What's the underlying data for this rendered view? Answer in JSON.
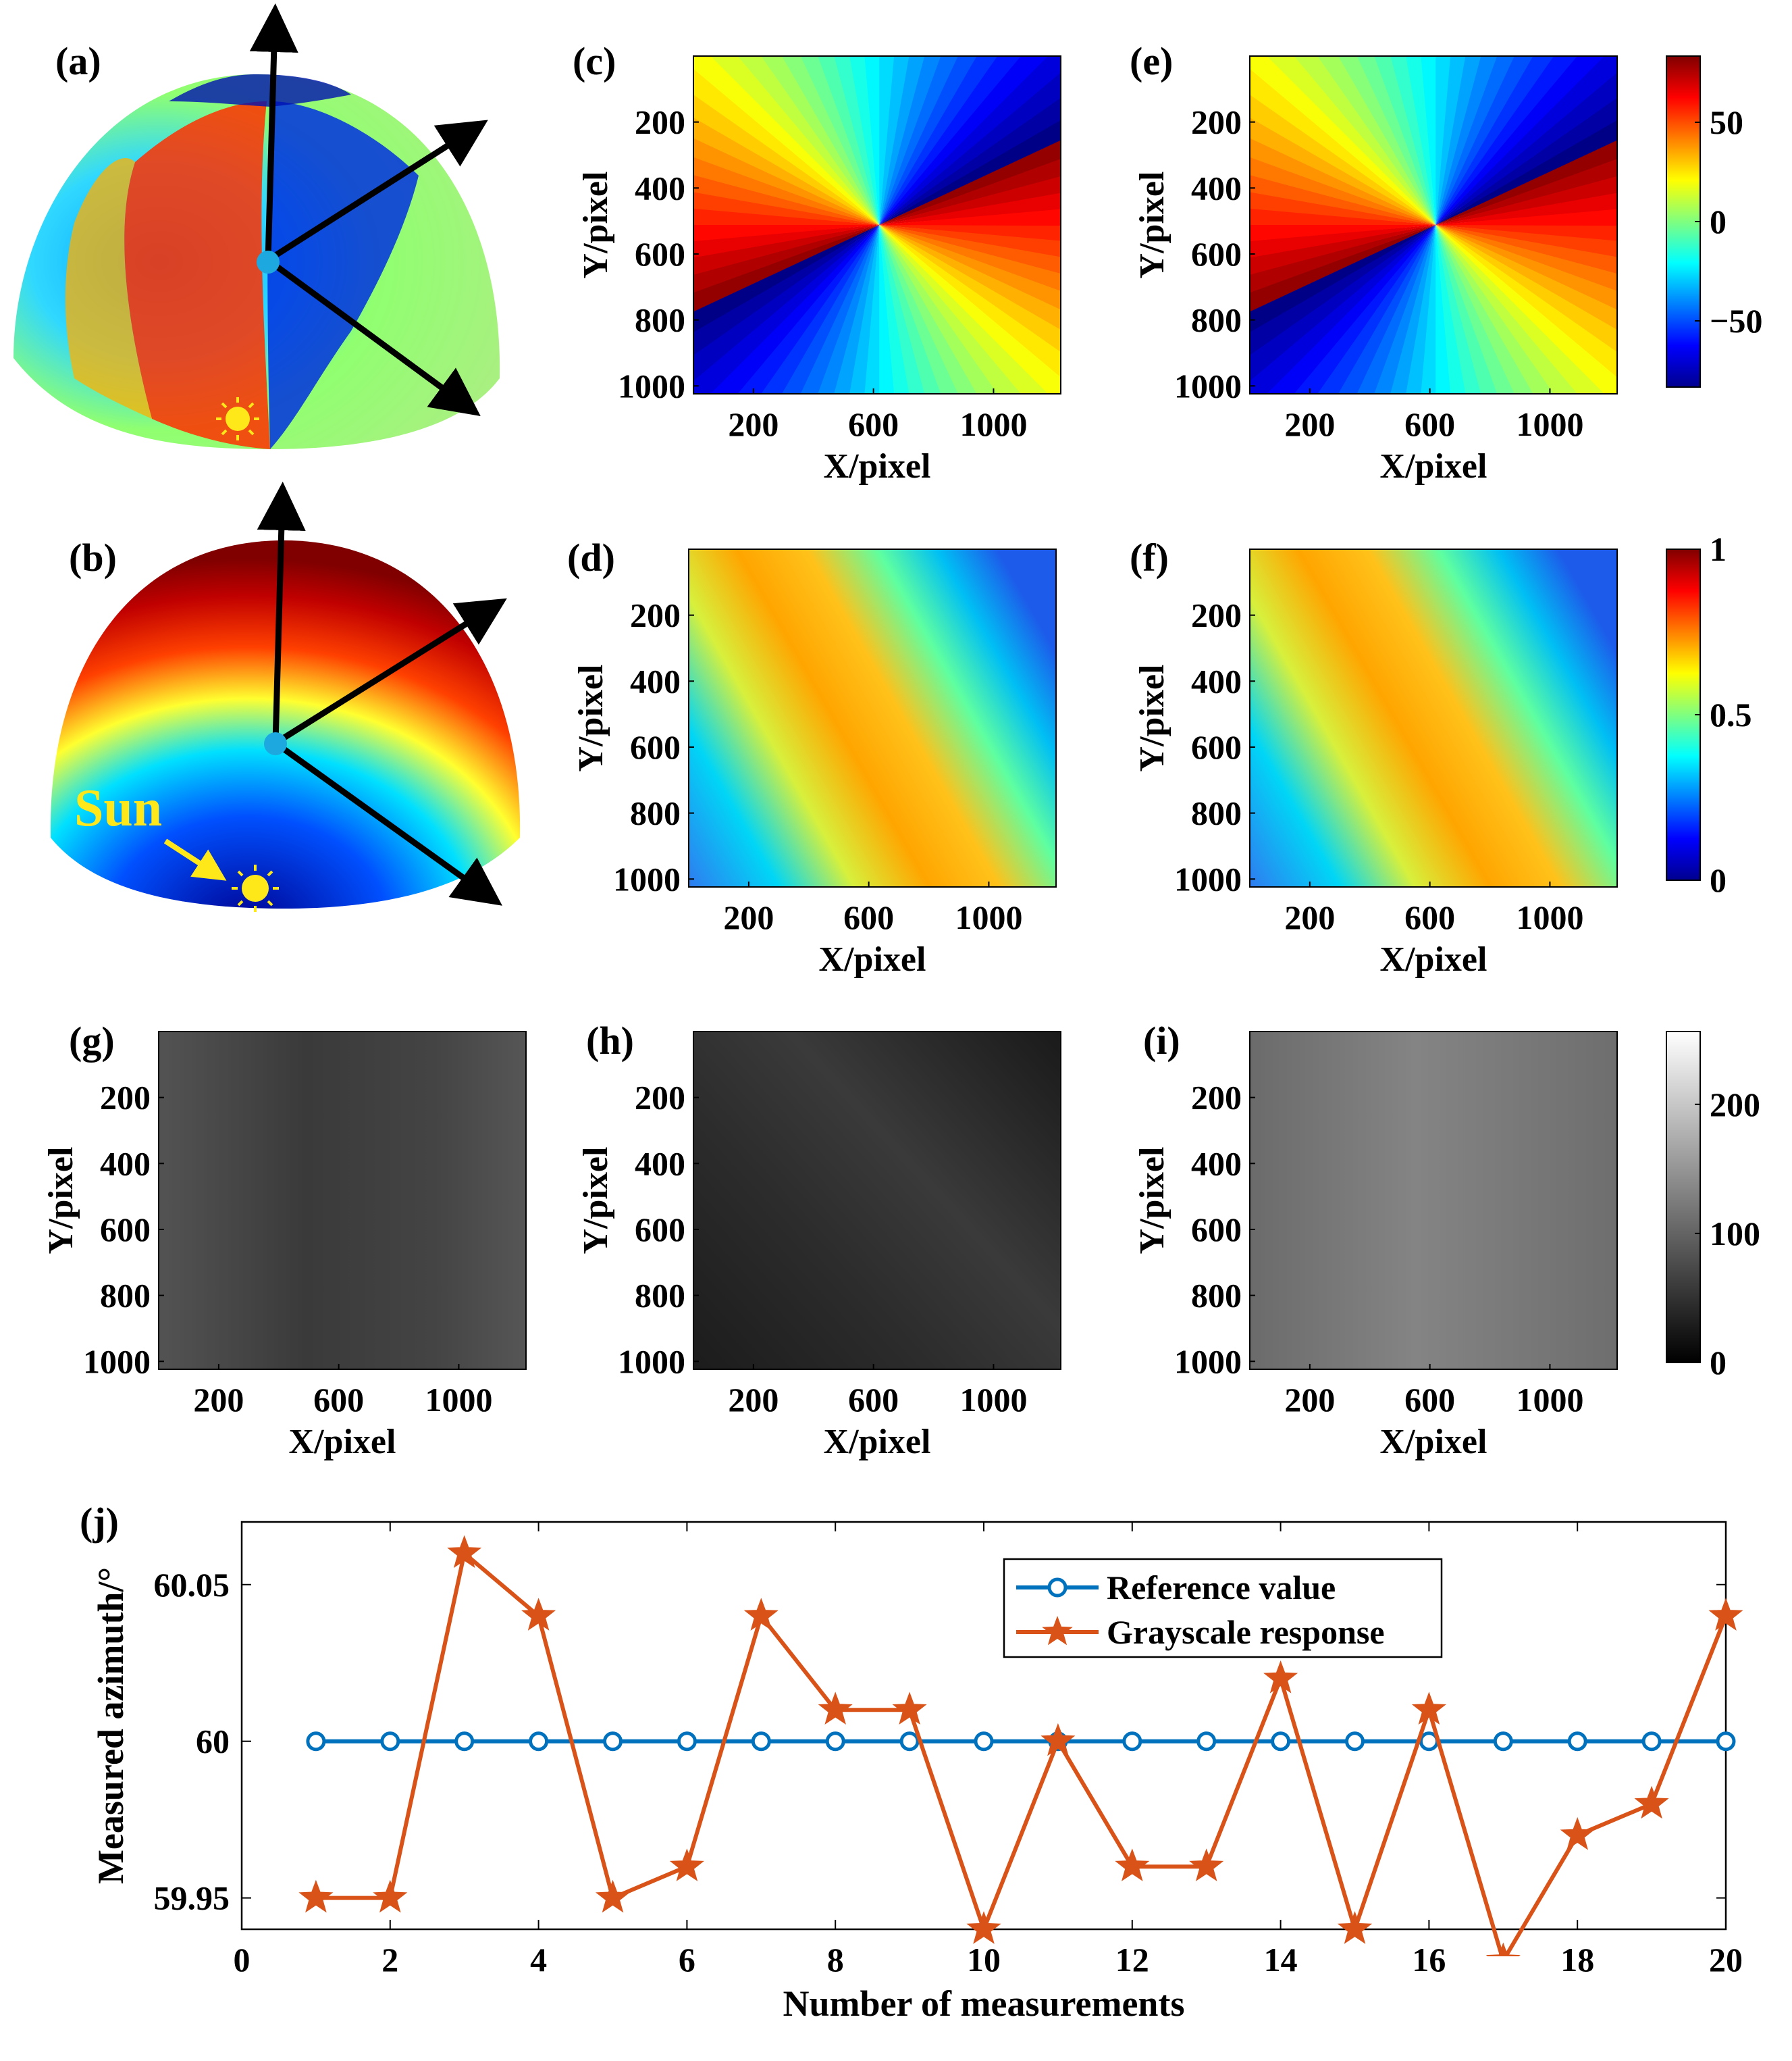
{
  "panel_labels": {
    "a": "(a)",
    "b": "(b)",
    "c": "(c)",
    "d": "(d)",
    "e": "(e)",
    "f": "(f)",
    "g": "(g)",
    "h": "(h)",
    "i": "(i)",
    "j": "(j)"
  },
  "sun_label": "Sun",
  "map_axes": {
    "xlabel": "X/pixel",
    "ylabel": "Y/pixel",
    "xticks": [
      "200",
      "600",
      "1000"
    ],
    "yticks": [
      "200",
      "400",
      "600",
      "800",
      "1000"
    ]
  },
  "colorbars": {
    "aop": {
      "ticks": [
        "50",
        "0",
        "−50"
      ],
      "colormap": "jet"
    },
    "dop": {
      "ticks": [
        "1",
        "0.5",
        "0"
      ],
      "colormap": "jet"
    },
    "gray": {
      "ticks": [
        "200",
        "100",
        "0"
      ],
      "colormap": "gray"
    }
  },
  "colors": {
    "reference": "#0072BD",
    "grayscale": "#D95319",
    "arrow": "#000000",
    "sun": "#FFE81A",
    "dot": "#1EA8E0"
  },
  "chart_data": {
    "type": "line",
    "xlabel": "Number of measurements",
    "ylabel": "Measured azimuth/°",
    "xlim": [
      0,
      20
    ],
    "ylim": [
      59.94,
      60.07
    ],
    "xticks": [
      "0",
      "2",
      "4",
      "6",
      "8",
      "10",
      "12",
      "14",
      "16",
      "18",
      "20"
    ],
    "yticks": [
      "60.05",
      "60",
      "59.95"
    ],
    "x": [
      1,
      2,
      3,
      4,
      5,
      6,
      7,
      8,
      9,
      10,
      11,
      12,
      13,
      14,
      15,
      16,
      17,
      18,
      19,
      20
    ],
    "series": [
      {
        "name": "Reference value",
        "marker": "circle",
        "values": [
          60,
          60,
          60,
          60,
          60,
          60,
          60,
          60,
          60,
          60,
          60,
          60,
          60,
          60,
          60,
          60,
          60,
          60,
          60,
          60
        ]
      },
      {
        "name": "Grayscale response",
        "marker": "star",
        "values": [
          59.95,
          59.95,
          60.06,
          60.04,
          59.95,
          59.96,
          60.04,
          60.01,
          60.01,
          59.94,
          60.0,
          59.96,
          59.96,
          60.02,
          59.94,
          60.01,
          59.93,
          59.97,
          59.98,
          60.04
        ]
      }
    ],
    "legend": "top-center",
    "grid": false
  }
}
